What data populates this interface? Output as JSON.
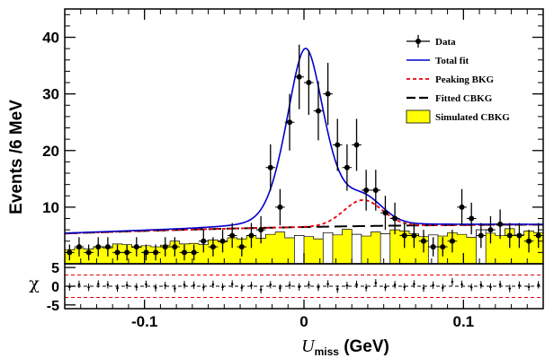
{
  "chart_data": {
    "type": "line",
    "x_axis": {
      "label_var": "U",
      "label_sub": "miss",
      "label_unit": " (GeV)",
      "range": [
        -0.15,
        0.15
      ],
      "ticks": [
        -0.1,
        0,
        0.1
      ],
      "tick_labels": [
        "-0.1",
        "0",
        "0.1"
      ]
    },
    "y_axis": {
      "label": "Events /6 MeV",
      "range": [
        0,
        45
      ],
      "ticks": [
        10,
        20,
        30,
        40
      ],
      "tick_labels": [
        "10",
        "20",
        "30",
        "40"
      ]
    },
    "pull_axis": {
      "label": "χ",
      "range": [
        -6,
        6
      ],
      "ticks": [
        -5,
        0,
        5
      ],
      "tick_labels": [
        "-5",
        "0",
        "5"
      ],
      "dashed_levels": [
        -3,
        0,
        3
      ]
    },
    "legend": {
      "position": "top-right",
      "entries": [
        {
          "label": "Data",
          "kind": "marker",
          "color": "#000000"
        },
        {
          "label": "Total fit",
          "kind": "line",
          "color": "#0000cc"
        },
        {
          "label": "Peaking BKG",
          "kind": "dashed",
          "color": "#e8000b"
        },
        {
          "label": "Fitted CBKG",
          "kind": "longdash",
          "color": "#000000"
        },
        {
          "label": "Simulated CBKG",
          "kind": "fill",
          "color": "#ffff00"
        }
      ]
    },
    "data": {
      "x": [
        -0.147,
        -0.141,
        -0.135,
        -0.129,
        -0.123,
        -0.117,
        -0.111,
        -0.105,
        -0.099,
        -0.093,
        -0.087,
        -0.081,
        -0.075,
        -0.069,
        -0.063,
        -0.057,
        -0.051,
        -0.045,
        -0.039,
        -0.033,
        -0.027,
        -0.021,
        -0.015,
        -0.009,
        -0.003,
        0.003,
        0.009,
        0.015,
        0.021,
        0.027,
        0.033,
        0.039,
        0.045,
        0.051,
        0.057,
        0.063,
        0.069,
        0.075,
        0.081,
        0.087,
        0.093,
        0.099,
        0.105,
        0.111,
        0.117,
        0.123,
        0.129,
        0.135,
        0.141,
        0.147
      ],
      "y": [
        2,
        3,
        2,
        3,
        3,
        2,
        2,
        3,
        2,
        2,
        3,
        3,
        2,
        2,
        4,
        3,
        4,
        5,
        3,
        5,
        6,
        17,
        10,
        25,
        33,
        32,
        27,
        30,
        21,
        17,
        21,
        13,
        13,
        9,
        8,
        5,
        5,
        4,
        3,
        3,
        4,
        10,
        8,
        5,
        6,
        7,
        5,
        5,
        4,
        5
      ],
      "err": [
        1.4,
        1.7,
        1.4,
        1.7,
        1.7,
        1.4,
        1.4,
        1.7,
        1.4,
        1.4,
        1.7,
        1.7,
        1.4,
        1.4,
        2.0,
        1.7,
        2.0,
        2.2,
        1.7,
        2.2,
        2.4,
        4.1,
        3.2,
        5.0,
        5.7,
        5.7,
        5.2,
        5.5,
        4.6,
        4.1,
        4.6,
        3.6,
        3.6,
        3.0,
        2.8,
        2.2,
        2.2,
        2.0,
        1.7,
        1.7,
        2.0,
        3.2,
        2.8,
        2.2,
        2.4,
        2.6,
        2.2,
        2.2,
        2.0,
        2.2
      ]
    },
    "simulated_cbkg": {
      "edges_start": -0.15,
      "bin_width": 0.006,
      "values": [
        2.5,
        2.7,
        2.6,
        3.0,
        2.8,
        3.5,
        3.4,
        2.9,
        3.2,
        3.0,
        3.3,
        4.0,
        3.5,
        3.6,
        3.4,
        4.2,
        3.9,
        4.6,
        4.4,
        5.0,
        4.5,
        5.2,
        5.6,
        4.6,
        5.0,
        4.8,
        4.4,
        5.5,
        5.1,
        6.1,
        5.2,
        4.9,
        5.6,
        5.3,
        6.0,
        5.8,
        5.3,
        4.8,
        5.1,
        4.9,
        5.5,
        5.2,
        4.7,
        6.0,
        5.4,
        5.0,
        6.2,
        5.1,
        5.8,
        5.5
      ]
    },
    "white_bins": [
      24,
      27,
      30,
      33,
      38,
      43
    ],
    "fit_params": {
      "cbkg_a": 3.65,
      "cbkg_b": 13.0,
      "sig_amp": 31.5,
      "sig_mu": 0.001,
      "sig_sigma": 0.0125,
      "sig_gamma": 0.012,
      "peak_amp": 4.6,
      "peak_mu": 0.037,
      "peak_sigma": 0.012
    },
    "pulls": [
      -0.2,
      0.5,
      -0.3,
      0.6,
      0.4,
      -0.5,
      0.3,
      -0.2,
      0.5,
      -0.4,
      0.2,
      -0.6,
      0.4,
      0.3,
      -0.3,
      0.5,
      -0.2,
      0.6,
      -0.4,
      0.2,
      -0.9,
      0.4,
      -0.5,
      0.3,
      -0.2,
      0.4,
      -0.3,
      0.6,
      -0.8,
      0.2,
      0.5,
      -0.4,
      0.9,
      -0.3,
      0.4,
      -0.2,
      0.6,
      -0.5,
      0.3,
      -0.4,
      1.2,
      0.5,
      -0.3,
      0.4,
      -0.2,
      0.5,
      -0.6,
      0.3,
      -0.2,
      0.4
    ]
  }
}
